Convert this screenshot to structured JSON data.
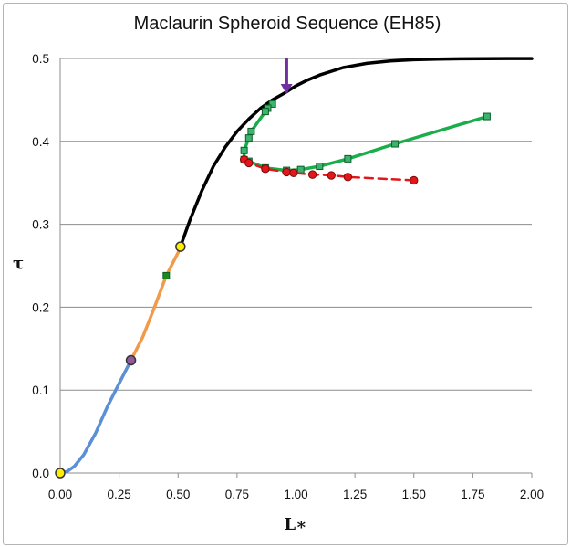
{
  "chart_data": {
    "type": "line",
    "title": "Maclaurin Spheroid Sequence (EH85)",
    "xlabel": "L∗",
    "ylabel": "τ",
    "xlim": [
      0,
      2.0
    ],
    "ylim": [
      0,
      0.5
    ],
    "x_ticks": [
      "0.00",
      "0.25",
      "0.50",
      "0.75",
      "1.00",
      "1.25",
      "1.50",
      "1.75",
      "2.00"
    ],
    "y_ticks": [
      "0.0",
      "0.1",
      "0.2",
      "0.3",
      "0.4",
      "0.5"
    ],
    "grid": "horizontal",
    "colors": {
      "blue": "#5b8fd6",
      "orange": "#f2994a",
      "black": "#000000",
      "green": "#1aae4a",
      "red": "#e3161b",
      "purple": "#7030a0",
      "yellow": "#ffee00"
    },
    "series": [
      {
        "style": "solid",
        "color": "#5b8fd6",
        "markers": "none",
        "x": [
          0,
          0.03,
          0.06,
          0.1,
          0.15,
          0.2,
          0.25,
          0.3
        ],
        "y": [
          0,
          0.002,
          0.008,
          0.022,
          0.048,
          0.08,
          0.108,
          0.136
        ]
      },
      {
        "style": "solid",
        "color": "#f2994a",
        "markers": "none",
        "x": [
          0.3,
          0.35,
          0.4,
          0.45,
          0.5,
          0.51
        ],
        "y": [
          0.136,
          0.164,
          0.2,
          0.238,
          0.266,
          0.273
        ]
      },
      {
        "style": "solid",
        "color": "#000000",
        "markers": "none",
        "x": [
          0.51,
          0.55,
          0.6,
          0.65,
          0.7,
          0.75,
          0.8,
          0.85,
          0.9,
          0.95,
          1.0,
          1.05,
          1.1,
          1.2,
          1.3,
          1.4,
          1.5,
          1.6,
          1.7,
          1.8,
          1.9,
          2.0
        ],
        "y": [
          0.273,
          0.305,
          0.34,
          0.37,
          0.393,
          0.412,
          0.427,
          0.44,
          0.45,
          0.458,
          0.467,
          0.474,
          0.48,
          0.489,
          0.494,
          0.497,
          0.4985,
          0.4992,
          0.4996,
          0.4998,
          0.4999,
          0.4999
        ]
      },
      {
        "style": "solid",
        "color": "#1aae4a",
        "markers": "square",
        "x": [
          0.9,
          0.88,
          0.87,
          0.81,
          0.8,
          0.78,
          0.78,
          0.8,
          0.87,
          0.96,
          1.02,
          1.1,
          1.22,
          1.42,
          1.81
        ],
        "y": [
          0.445,
          0.44,
          0.436,
          0.412,
          0.404,
          0.389,
          0.378,
          0.376,
          0.368,
          0.365,
          0.366,
          0.37,
          0.379,
          0.397,
          0.43
        ]
      },
      {
        "style": "dashed",
        "color": "#e3161b",
        "markers": "circle",
        "x": [
          0.78,
          0.8,
          0.87,
          0.96,
          0.99,
          1.07,
          1.15,
          1.22,
          1.5
        ],
        "y": [
          0.378,
          0.374,
          0.367,
          0.363,
          0.362,
          0.36,
          0.359,
          0.357,
          0.353
        ]
      }
    ],
    "special_points": [
      {
        "x": 0.0,
        "y": 0.0,
        "marker": "circle",
        "color": "#ffee00"
      },
      {
        "x": 0.3,
        "y": 0.136,
        "marker": "circle",
        "color": "#8e5a9a"
      },
      {
        "x": 0.45,
        "y": 0.238,
        "marker": "square",
        "color": "#1a8a1a"
      },
      {
        "x": 0.51,
        "y": 0.273,
        "marker": "circle",
        "color": "#ffee00"
      }
    ],
    "annotations": [
      {
        "type": "arrow",
        "color": "#7030a0",
        "x": 0.96,
        "y_from": 0.5,
        "y_to": 0.457
      }
    ]
  }
}
